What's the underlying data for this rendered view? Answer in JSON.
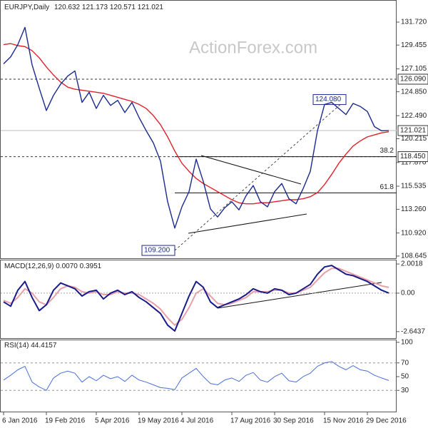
{
  "chart_data": [
    {
      "type": "line",
      "title": "EURJPY,Daily",
      "ohlc": [
        120.632,
        121.173,
        120.571,
        121.021
      ],
      "watermark": "ActionForex.com",
      "categories": [
        "6 Jan 2016",
        null,
        null,
        null,
        null,
        null,
        "19 Feb 2016",
        null,
        null,
        null,
        null,
        null,
        null,
        "5 Apr 2016",
        null,
        null,
        null,
        null,
        null,
        "19 May 2016",
        null,
        null,
        null,
        null,
        null,
        "4 Jul 2016",
        null,
        null,
        null,
        null,
        null,
        null,
        "17 Aug 2016",
        null,
        null,
        null,
        null,
        null,
        "30 Sep 2016",
        null,
        null,
        null,
        null,
        null,
        null,
        "15 Nov 2016",
        null,
        null,
        null,
        null,
        null,
        "29 Dec 2016",
        null,
        null,
        null
      ],
      "series": [
        {
          "name": "EURJPY",
          "color": "#1a2a8c",
          "values": [
            127.6,
            128.3,
            129.5,
            131.2,
            127.5,
            125.2,
            123.0,
            124.5,
            125.6,
            126.4,
            126.9,
            123.8,
            124.8,
            123.2,
            124.5,
            123.5,
            124.0,
            122.8,
            123.8,
            122.3,
            121.0,
            119.8,
            118.0,
            114.0,
            111.4,
            113.5,
            115.0,
            118.2,
            116.0,
            113.3,
            112.5,
            113.4,
            114.0,
            113.2,
            114.6,
            115.6,
            114.0,
            113.5,
            115.0,
            115.8,
            114.3,
            113.8,
            115.3,
            117.0,
            121.0,
            123.6,
            123.8,
            123.2,
            122.6,
            123.7,
            123.4,
            122.9,
            121.4,
            121.0,
            121.021
          ]
        },
        {
          "name": "MA",
          "color": "#e0202a",
          "values": [
            129.5,
            129.6,
            129.4,
            129.3,
            128.9,
            128.2,
            127.3,
            126.5,
            125.8,
            125.3,
            125.1,
            125.0,
            124.9,
            124.8,
            124.7,
            124.5,
            124.3,
            124.1,
            123.9,
            123.6,
            123.2,
            122.5,
            121.6,
            120.4,
            119.0,
            117.8,
            117.0,
            116.3,
            115.8,
            115.4,
            115.0,
            114.6,
            114.2,
            113.9,
            113.8,
            113.8,
            113.9,
            113.9,
            114.0,
            114.1,
            114.2,
            114.2,
            114.3,
            114.5,
            114.9,
            115.7,
            116.7,
            117.8,
            118.7,
            119.5,
            120.0,
            120.4,
            120.6,
            120.8,
            120.9
          ]
        }
      ],
      "ylim": [
        108.43,
        133.9
      ],
      "yticks": [
        {
          "value": 131.72,
          "label": "131.720"
        },
        {
          "value": 129.455,
          "label": "129.455"
        },
        {
          "value": 127.105,
          "label": "127.105"
        },
        {
          "value": 124.85,
          "label": "124.850"
        },
        {
          "value": 122.49,
          "label": "122.490"
        },
        {
          "value": 120.215,
          "label": "120.215"
        },
        {
          "value": 117.87,
          "label": "117.870"
        },
        {
          "value": 115.535,
          "label": "115.535"
        },
        {
          "value": 113.26,
          "label": "113.260"
        },
        {
          "value": 110.92,
          "label": "110.920"
        },
        {
          "value": 108.645,
          "label": "108.645"
        }
      ],
      "price_labels": [
        {
          "value": 126.09,
          "label": "126.090"
        },
        {
          "value": 121.021,
          "label": "121.021"
        },
        {
          "value": 118.45,
          "label": "118.450"
        }
      ],
      "fib_levels": [
        {
          "value": 118.45,
          "label": "38.2"
        },
        {
          "value": 114.88,
          "label": "61.8"
        }
      ],
      "annotations": [
        {
          "index": 48,
          "value": 124.08,
          "label": "124.080"
        },
        {
          "index": 24,
          "value": 109.2,
          "label": "109.200"
        }
      ]
    },
    {
      "type": "line",
      "title": "MACD(12,26,9)",
      "readings": [
        {
          "value": 0.007,
          "label": "0.0070"
        },
        0.3951
      ],
      "series": [
        {
          "name": "MACD",
          "color": "#1a1a8c",
          "values": [
            -0.6,
            -0.9,
            0.2,
            0.8,
            -0.3,
            -1.2,
            -0.8,
            0.2,
            0.7,
            0.5,
            0.3,
            -0.2,
            0.1,
            0.2,
            -0.4,
            0.0,
            0.2,
            -0.1,
            0.1,
            -0.3,
            -0.6,
            -1.0,
            -1.4,
            -2.2,
            -2.6,
            -1.4,
            -0.2,
            0.8,
            0.4,
            -0.6,
            -1.0,
            -0.8,
            -0.6,
            -0.4,
            -0.1,
            0.3,
            0.1,
            0.0,
            0.3,
            0.2,
            -0.1,
            0.0,
            0.3,
            0.6,
            1.3,
            1.8,
            1.9,
            1.6,
            1.3,
            1.2,
            1.0,
            0.8,
            0.5,
            0.2,
            0.007
          ]
        },
        {
          "name": "Signal",
          "color": "#e8a0a8",
          "values": [
            -0.5,
            -0.7,
            -0.3,
            0.3,
            0.0,
            -0.6,
            -0.8,
            -0.3,
            0.3,
            0.5,
            0.4,
            0.1,
            0.0,
            0.1,
            -0.1,
            -0.1,
            0.1,
            0.0,
            0.0,
            -0.1,
            -0.4,
            -0.7,
            -1.1,
            -1.7,
            -2.2,
            -1.8,
            -1.0,
            0.0,
            0.3,
            -0.2,
            -0.7,
            -0.8,
            -0.7,
            -0.5,
            -0.3,
            0.1,
            0.1,
            0.1,
            0.2,
            0.2,
            0.0,
            0.0,
            0.2,
            0.4,
            0.9,
            1.4,
            1.7,
            1.7,
            1.5,
            1.3,
            1.1,
            0.9,
            0.7,
            0.5,
            0.3951
          ]
        }
      ],
      "ylim": [
        -3.14,
        2.3
      ],
      "yticks": [
        2.0018,
        {
          "value": 0,
          "label": "0.00"
        },
        -2.6437
      ]
    },
    {
      "type": "line",
      "title": "RSI(14)",
      "readings": [
        44.4157
      ],
      "series": [
        {
          "name": "RSI",
          "color": "#4a6fd8",
          "values": [
            45,
            52,
            60,
            65,
            42,
            35,
            30,
            48,
            55,
            58,
            55,
            42,
            50,
            44,
            52,
            47,
            50,
            43,
            52,
            45,
            42,
            38,
            34,
            33,
            31,
            48,
            55,
            62,
            50,
            40,
            38,
            45,
            48,
            43,
            52,
            56,
            45,
            42,
            50,
            55,
            44,
            42,
            50,
            55,
            65,
            70,
            72,
            65,
            60,
            66,
            60,
            58,
            52,
            48,
            44.4157
          ]
        }
      ],
      "ylim": [
        -2,
        103
      ],
      "yticks": [
        100,
        70,
        50,
        30
      ],
      "dashed_levels": [
        70,
        30
      ]
    }
  ]
}
